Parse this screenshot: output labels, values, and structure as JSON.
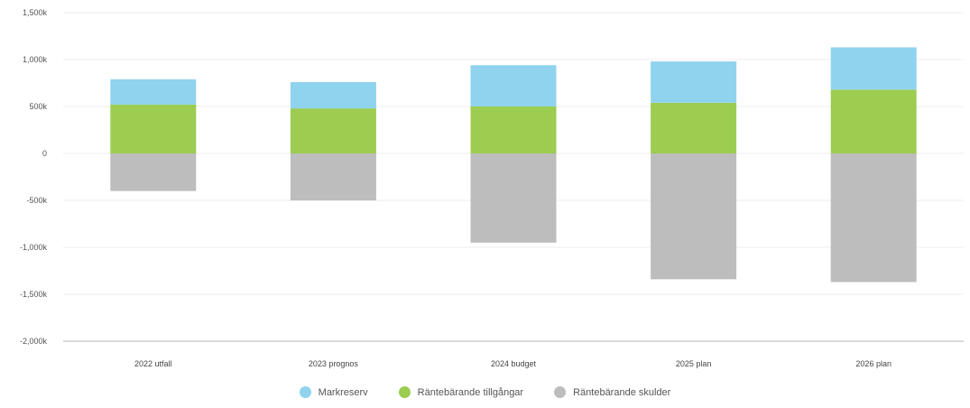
{
  "chart_data": {
    "type": "bar",
    "stacked": true,
    "categories": [
      "2022 utfall",
      "2023 prognos",
      "2024 budget",
      "2025 plan",
      "2026 plan"
    ],
    "series": [
      {
        "name": "Räntebärande tillgångar",
        "color": "#9ccc50",
        "values": [
          520,
          480,
          500,
          540,
          680
        ]
      },
      {
        "name": "Markreserv",
        "color": "#8fd3ee",
        "values": [
          270,
          280,
          440,
          440,
          450
        ]
      },
      {
        "name": "Räntebärande skulder",
        "color": "#bdbdbd",
        "values": [
          -400,
          -500,
          -950,
          -1340,
          -1370
        ]
      }
    ],
    "y_ticks": [
      "1,500k",
      "1,000k",
      "500k",
      "0",
      "-500k",
      "-1,000k",
      "-1,500k",
      "-2,000k"
    ],
    "y_tick_values": [
      1500,
      1000,
      500,
      0,
      -500,
      -1000,
      -1500,
      -2000
    ],
    "ylim": [
      -2000,
      1500
    ],
    "legend_order": [
      "Markreserv",
      "Räntebärande tillgångar",
      "Räntebärande skulder"
    ],
    "legend_position": "bottom-center",
    "grid": true
  }
}
